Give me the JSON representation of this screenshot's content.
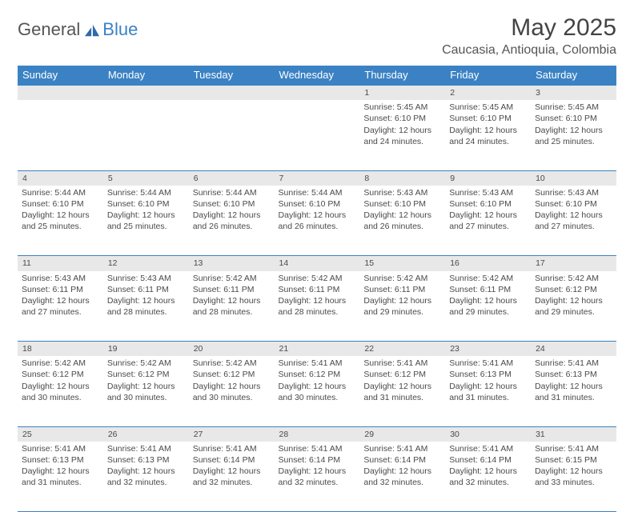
{
  "logo": {
    "general": "General",
    "blue": "Blue"
  },
  "header": {
    "month_title": "May 2025",
    "location": "Caucasia, Antioquia, Colombia"
  },
  "colors": {
    "accent": "#3b82c4",
    "daynum_bg": "#e8e8e8",
    "text": "#4a4a4a",
    "header_text": "#ffffff"
  },
  "typography": {
    "title_fontsize": 30,
    "location_fontsize": 16,
    "header_fontsize": 13,
    "cell_fontsize": 10.5
  },
  "labels": {
    "sunrise": "Sunrise",
    "sunset": "Sunset",
    "daylight": "Daylight"
  },
  "weekdays": [
    "Sunday",
    "Monday",
    "Tuesday",
    "Wednesday",
    "Thursday",
    "Friday",
    "Saturday"
  ],
  "weeks": [
    [
      null,
      null,
      null,
      null,
      {
        "n": "1",
        "sr": "5:45 AM",
        "ss": "6:10 PM",
        "dl": "12 hours and 24 minutes."
      },
      {
        "n": "2",
        "sr": "5:45 AM",
        "ss": "6:10 PM",
        "dl": "12 hours and 24 minutes."
      },
      {
        "n": "3",
        "sr": "5:45 AM",
        "ss": "6:10 PM",
        "dl": "12 hours and 25 minutes."
      }
    ],
    [
      {
        "n": "4",
        "sr": "5:44 AM",
        "ss": "6:10 PM",
        "dl": "12 hours and 25 minutes."
      },
      {
        "n": "5",
        "sr": "5:44 AM",
        "ss": "6:10 PM",
        "dl": "12 hours and 25 minutes."
      },
      {
        "n": "6",
        "sr": "5:44 AM",
        "ss": "6:10 PM",
        "dl": "12 hours and 26 minutes."
      },
      {
        "n": "7",
        "sr": "5:44 AM",
        "ss": "6:10 PM",
        "dl": "12 hours and 26 minutes."
      },
      {
        "n": "8",
        "sr": "5:43 AM",
        "ss": "6:10 PM",
        "dl": "12 hours and 26 minutes."
      },
      {
        "n": "9",
        "sr": "5:43 AM",
        "ss": "6:10 PM",
        "dl": "12 hours and 27 minutes."
      },
      {
        "n": "10",
        "sr": "5:43 AM",
        "ss": "6:10 PM",
        "dl": "12 hours and 27 minutes."
      }
    ],
    [
      {
        "n": "11",
        "sr": "5:43 AM",
        "ss": "6:11 PM",
        "dl": "12 hours and 27 minutes."
      },
      {
        "n": "12",
        "sr": "5:43 AM",
        "ss": "6:11 PM",
        "dl": "12 hours and 28 minutes."
      },
      {
        "n": "13",
        "sr": "5:42 AM",
        "ss": "6:11 PM",
        "dl": "12 hours and 28 minutes."
      },
      {
        "n": "14",
        "sr": "5:42 AM",
        "ss": "6:11 PM",
        "dl": "12 hours and 28 minutes."
      },
      {
        "n": "15",
        "sr": "5:42 AM",
        "ss": "6:11 PM",
        "dl": "12 hours and 29 minutes."
      },
      {
        "n": "16",
        "sr": "5:42 AM",
        "ss": "6:11 PM",
        "dl": "12 hours and 29 minutes."
      },
      {
        "n": "17",
        "sr": "5:42 AM",
        "ss": "6:12 PM",
        "dl": "12 hours and 29 minutes."
      }
    ],
    [
      {
        "n": "18",
        "sr": "5:42 AM",
        "ss": "6:12 PM",
        "dl": "12 hours and 30 minutes."
      },
      {
        "n": "19",
        "sr": "5:42 AM",
        "ss": "6:12 PM",
        "dl": "12 hours and 30 minutes."
      },
      {
        "n": "20",
        "sr": "5:42 AM",
        "ss": "6:12 PM",
        "dl": "12 hours and 30 minutes."
      },
      {
        "n": "21",
        "sr": "5:41 AM",
        "ss": "6:12 PM",
        "dl": "12 hours and 30 minutes."
      },
      {
        "n": "22",
        "sr": "5:41 AM",
        "ss": "6:12 PM",
        "dl": "12 hours and 31 minutes."
      },
      {
        "n": "23",
        "sr": "5:41 AM",
        "ss": "6:13 PM",
        "dl": "12 hours and 31 minutes."
      },
      {
        "n": "24",
        "sr": "5:41 AM",
        "ss": "6:13 PM",
        "dl": "12 hours and 31 minutes."
      }
    ],
    [
      {
        "n": "25",
        "sr": "5:41 AM",
        "ss": "6:13 PM",
        "dl": "12 hours and 31 minutes."
      },
      {
        "n": "26",
        "sr": "5:41 AM",
        "ss": "6:13 PM",
        "dl": "12 hours and 32 minutes."
      },
      {
        "n": "27",
        "sr": "5:41 AM",
        "ss": "6:14 PM",
        "dl": "12 hours and 32 minutes."
      },
      {
        "n": "28",
        "sr": "5:41 AM",
        "ss": "6:14 PM",
        "dl": "12 hours and 32 minutes."
      },
      {
        "n": "29",
        "sr": "5:41 AM",
        "ss": "6:14 PM",
        "dl": "12 hours and 32 minutes."
      },
      {
        "n": "30",
        "sr": "5:41 AM",
        "ss": "6:14 PM",
        "dl": "12 hours and 32 minutes."
      },
      {
        "n": "31",
        "sr": "5:41 AM",
        "ss": "6:15 PM",
        "dl": "12 hours and 33 minutes."
      }
    ]
  ]
}
